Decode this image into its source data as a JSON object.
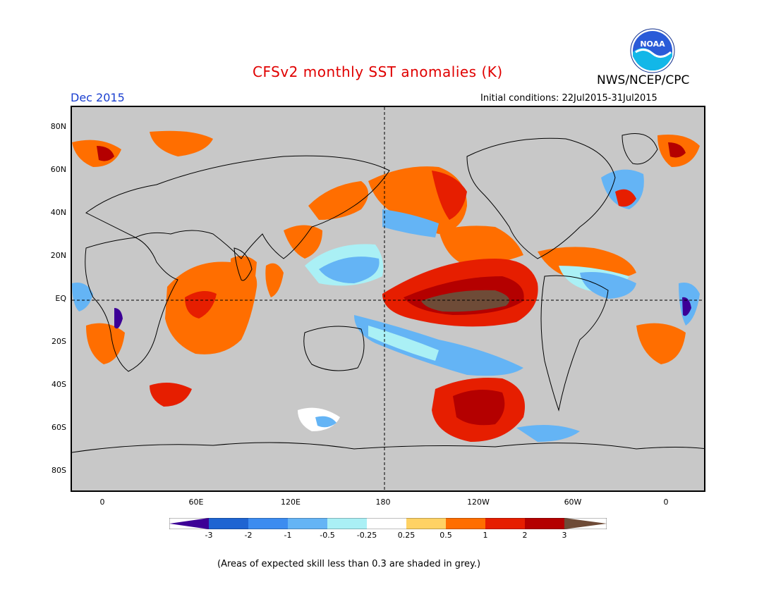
{
  "title": "CFSv2 monthly SST anomalies (K)",
  "agency": "NWS/NCEP/CPC",
  "logo_text": "NOAA",
  "month": "Dec 2015",
  "initial_conditions": "Initial conditions: 22Jul2015-31Jul2015",
  "footnote": "(Areas of expected skill less than 0.3 are shaded in grey.)",
  "colors": {
    "low_skill_grey": "#c8c8c8",
    "title_red": "#e00000",
    "month_blue": "#1a3fd0"
  },
  "map": {
    "lat_labels": [
      "80N",
      "60N",
      "40N",
      "20N",
      "EQ",
      "20S",
      "40S",
      "60S",
      "80S"
    ],
    "lon_labels": [
      "0",
      "60E",
      "120E",
      "180",
      "120W",
      "60W",
      "0"
    ],
    "reference_lines": [
      "equator",
      "dateline"
    ]
  },
  "colorbar": {
    "colors": [
      "#3c0096",
      "#1e64d2",
      "#3c8cf0",
      "#64b4f5",
      "#aaf0f5",
      "#ffffff",
      "#ffff9a",
      "#ffd264",
      "#ff6e00",
      "#e61e00",
      "#b40000",
      "#6e4b37"
    ],
    "labels": [
      "-3",
      "-2",
      "-1",
      "-0.5",
      "-0.25",
      "0.25",
      "0.5",
      "1",
      "2",
      "3"
    ]
  }
}
